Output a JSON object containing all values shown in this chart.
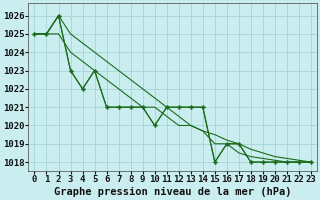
{
  "title": "Graphe pression niveau de la mer (hPa)",
  "background_color": "#caeef0",
  "grid_color": "#aad8d8",
  "line_color": "#1a6b1a",
  "series1": {
    "x": [
      0,
      1,
      2,
      3,
      4,
      5,
      6,
      7,
      8,
      9,
      10,
      11,
      12,
      13,
      14,
      15,
      16,
      17,
      18,
      19,
      20,
      21,
      22,
      23
    ],
    "y": [
      1025,
      1025,
      1026,
      1023,
      1022,
      1023,
      1021,
      1021,
      1021,
      1021,
      1020,
      1021,
      1021,
      1021,
      1021,
      1018,
      1019,
      1019,
      1018,
      1018,
      1018,
      1018,
      1018,
      1018
    ]
  },
  "series2": {
    "x": [
      0,
      1,
      2,
      3,
      4,
      5,
      6,
      7,
      8,
      9,
      10,
      11,
      12,
      13,
      14,
      15,
      16,
      17,
      18,
      19,
      20,
      21,
      22,
      23
    ],
    "y": [
      1025,
      1025,
      1026,
      1023,
      1022,
      1023,
      1021,
      1021,
      1021,
      1021,
      1020,
      1021,
      1021,
      1021,
      1021,
      1018,
      1019,
      1019,
      1018,
      1018,
      1018,
      1018,
      1018,
      1018
    ]
  },
  "series3": {
    "x": [
      0,
      1,
      2,
      3,
      4,
      5,
      6,
      7,
      8,
      9,
      10,
      11,
      12,
      13,
      14,
      15,
      16,
      17,
      18,
      19,
      20,
      21,
      22,
      23
    ],
    "y": [
      1025,
      1025,
      1026,
      1025,
      1024.5,
      1024,
      1023.5,
      1023,
      1022.5,
      1022,
      1021.5,
      1021,
      1020.5,
      1020,
      1019.7,
      1019.5,
      1019.2,
      1019,
      1018.7,
      1018.5,
      1018.3,
      1018.2,
      1018.1,
      1018
    ]
  },
  "series4": {
    "x": [
      0,
      1,
      2,
      3,
      4,
      5,
      6,
      7,
      8,
      9,
      10,
      11,
      12,
      13,
      14,
      15,
      16,
      17,
      18,
      19,
      20,
      21,
      22,
      23
    ],
    "y": [
      1025,
      1025,
      1025,
      1024,
      1023.5,
      1023,
      1022.5,
      1022,
      1021.5,
      1021,
      1021,
      1020.5,
      1020,
      1020,
      1019.7,
      1019,
      1019,
      1018.5,
      1018.3,
      1018.2,
      1018.1,
      1018,
      1018,
      1018
    ]
  },
  "ylim": [
    1017.5,
    1026.7
  ],
  "xlim": [
    -0.5,
    23.5
  ],
  "yticks": [
    1018,
    1019,
    1020,
    1021,
    1022,
    1023,
    1024,
    1025,
    1026
  ],
  "xticks": [
    0,
    1,
    2,
    3,
    4,
    5,
    6,
    7,
    8,
    9,
    10,
    11,
    12,
    13,
    14,
    15,
    16,
    17,
    18,
    19,
    20,
    21,
    22,
    23
  ],
  "xlabel_fontsize": 6.5,
  "ylabel_fontsize": 6.5,
  "title_fontsize": 7.5
}
